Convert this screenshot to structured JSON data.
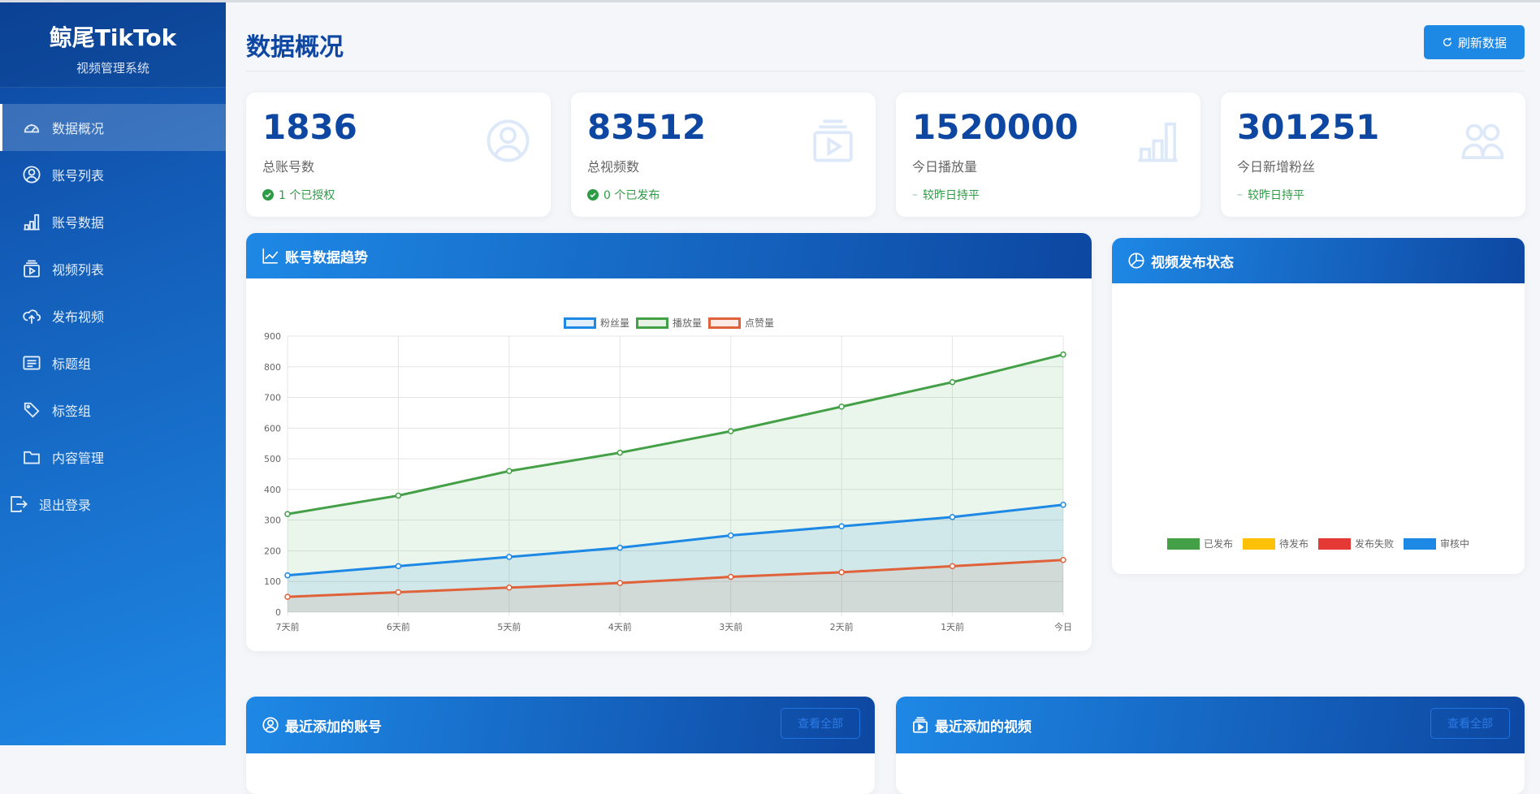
{
  "sidebar": {
    "brand": "鲸尾TikTok",
    "subtitle": "视频管理系统",
    "items": [
      {
        "label": "数据概况",
        "icon": "dashboard-icon",
        "active": true
      },
      {
        "label": "账号列表",
        "icon": "user-circle-icon"
      },
      {
        "label": "账号数据",
        "icon": "bar-chart-icon"
      },
      {
        "label": "视频列表",
        "icon": "video-collection-icon"
      },
      {
        "label": "发布视频",
        "icon": "cloud-upload-icon"
      },
      {
        "label": "标题组",
        "icon": "card-text-icon"
      },
      {
        "label": "标签组",
        "icon": "tags-icon"
      },
      {
        "label": "内容管理",
        "icon": "folder-icon"
      }
    ],
    "logout": "退出登录"
  },
  "header": {
    "title": "数据概况",
    "refresh": "刷新数据"
  },
  "stats": [
    {
      "value": "1836",
      "label": "总账号数",
      "sub": "1 个已授权",
      "sub_icon": "check-circle-icon",
      "icon": "person-circle-icon"
    },
    {
      "value": "83512",
      "label": "总视频数",
      "sub": "0 个已发布",
      "sub_icon": "check-circle-icon",
      "icon": "video-collection-icon"
    },
    {
      "value": "1520000",
      "label": "今日播放量",
      "sub": "较昨日持平",
      "sub_icon": "dash-icon",
      "icon": "bar-chart-icon"
    },
    {
      "value": "301251",
      "label": "今日新增粉丝",
      "sub": "较昨日持平",
      "sub_icon": "dash-icon",
      "icon": "people-icon"
    }
  ],
  "trend": {
    "title": "账号数据趋势"
  },
  "status": {
    "title": "视频发布状态"
  },
  "recent_accounts": {
    "title": "最近添加的账号",
    "view_all": "查看全部"
  },
  "recent_videos": {
    "title": "最近添加的视频",
    "view_all": "查看全部"
  },
  "chart_data": [
    {
      "type": "line",
      "categories": [
        "7天前",
        "6天前",
        "5天前",
        "4天前",
        "3天前",
        "2天前",
        "1天前",
        "今日"
      ],
      "ylim": [
        0,
        900
      ],
      "yticks": [
        "0",
        "100",
        "200",
        "300",
        "400",
        "500",
        "600",
        "700",
        "800",
        "900"
      ],
      "grid": true,
      "legend": "top",
      "fill": true,
      "series": [
        {
          "name": "粉丝量",
          "color": "#1e88e5",
          "values": [
            120,
            150,
            180,
            210,
            250,
            280,
            310,
            350
          ]
        },
        {
          "name": "播放量",
          "color": "#43a047",
          "values": [
            320,
            380,
            460,
            520,
            590,
            670,
            750,
            840
          ]
        },
        {
          "name": "点赞量",
          "color": "#e0623a",
          "values": [
            50,
            65,
            80,
            95,
            115,
            130,
            150,
            170
          ]
        }
      ]
    },
    {
      "type": "pie",
      "legend": "bottom",
      "series": [
        {
          "name": "已发布",
          "color": "#43a047"
        },
        {
          "name": "待发布",
          "color": "#ffc107"
        },
        {
          "name": "发布失败",
          "color": "#e53935"
        },
        {
          "name": "审核中",
          "color": "#1e88e5"
        }
      ]
    }
  ]
}
